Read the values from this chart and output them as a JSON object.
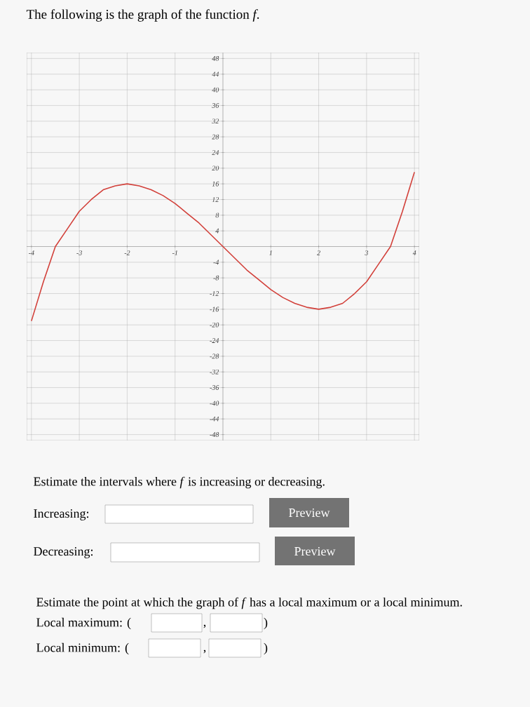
{
  "chart_data": {
    "type": "line",
    "title": "The following is the graph of the function *f*.",
    "x": [
      -4,
      -3.75,
      -3.5,
      -3.25,
      -3,
      -2.75,
      -2.5,
      -2.25,
      -2,
      -1.75,
      -1.5,
      -1.25,
      -1,
      -0.75,
      -0.5,
      -0.25,
      0,
      0.25,
      0.5,
      0.75,
      1,
      1.25,
      1.5,
      1.75,
      2,
      2.25,
      2.5,
      2.75,
      3,
      3.25,
      3.5,
      3.75,
      4
    ],
    "series": [
      {
        "color": "#d2403a",
        "values": [
          -19,
          -9,
          0,
          4.5,
          9,
          12,
          14.5,
          15.5,
          16,
          15.5,
          14.5,
          13,
          11,
          8.5,
          6,
          3,
          0,
          -3,
          -6,
          -8.5,
          -11,
          -13,
          -14.5,
          -15.5,
          -16,
          -15.5,
          -14.5,
          -12,
          -9,
          -4.5,
          0,
          9,
          19
        ]
      }
    ],
    "xlim": [
      -4.1,
      4.1
    ],
    "ylim": [
      -49.5,
      49.5
    ],
    "xticks": [
      -4,
      -3,
      -2,
      -1,
      1,
      2,
      3,
      4
    ],
    "yticks": [
      -48,
      -44,
      -40,
      -36,
      -32,
      -28,
      -24,
      -20,
      -16,
      -12,
      -8,
      -4,
      4,
      8,
      12,
      16,
      20,
      24,
      28,
      32,
      36,
      40,
      44,
      48
    ],
    "grid": true,
    "marker": "none",
    "line_style": "solid",
    "annotations": [
      "Estimate the intervals where *f* is increasing or decreasing.",
      "Increasing:",
      "Preview",
      "Decreasing:",
      "Preview",
      "Estimate the point at which the graph of *f* has a local maximum or a local minimum.",
      "Local maximum: (",
      ",",
      ")",
      "Local minimum: (",
      ",",
      ")"
    ]
  }
}
